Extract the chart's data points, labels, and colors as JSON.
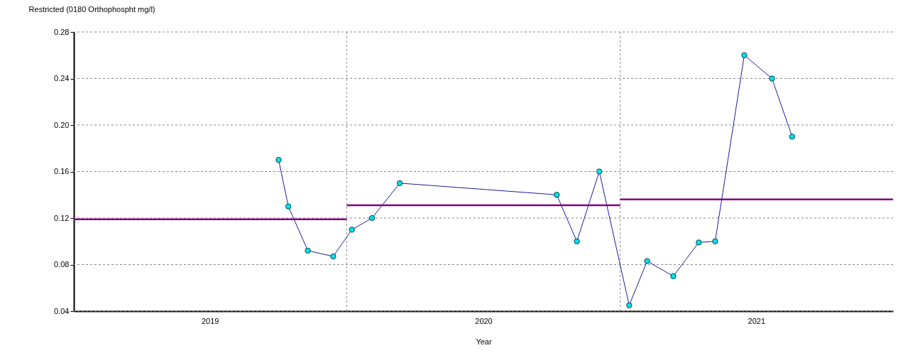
{
  "chart_data": {
    "type": "line",
    "title": "Restricted (0180 Orthophospht   mg/l)",
    "xlabel": "Year",
    "series": [
      {
        "type": "line",
        "color": "#1c1ca0",
        "marker": "circle",
        "x": [
          "2019-10-02",
          "2019-10-15",
          "2019-11-10",
          "2019-12-14",
          "2020-01-08",
          "2020-02-04",
          "2020-03-12",
          "2020-10-08",
          "2020-11-04",
          "2020-12-04",
          "2021-01-13",
          "2021-02-06",
          "2021-03-13",
          "2021-04-16",
          "2021-05-08",
          "2021-06-16",
          "2021-07-23",
          "2021-08-19"
        ],
        "values": [
          0.17,
          0.13,
          0.092,
          0.087,
          0.11,
          0.12,
          0.15,
          0.14,
          0.1,
          0.16,
          0.045,
          0.083,
          0.07,
          0.099,
          0.1,
          0.26,
          0.24,
          0.19
        ]
      },
      {
        "type": "line",
        "color": "#800080",
        "marker": "none",
        "x": [
          "2019-01-01",
          "2020-01-01"
        ],
        "values": [
          0.119,
          0.119
        ]
      },
      {
        "type": "line",
        "color": "#800080",
        "marker": "none",
        "x": [
          "2020-01-01",
          "2021-01-01"
        ],
        "values": [
          0.131,
          0.131
        ]
      },
      {
        "type": "line",
        "color": "#800080",
        "marker": "none",
        "x": [
          "2021-01-01",
          "2022-01-01"
        ],
        "values": [
          0.136,
          0.136
        ]
      }
    ],
    "xlim": [
      "2019-01-01",
      "2022-01-01"
    ],
    "xticks": [
      {
        "value": "2019-07-02",
        "label": "2019"
      },
      {
        "value": "2020-01-01",
        "label": null
      },
      {
        "value": "2020-07-02",
        "label": "2020"
      },
      {
        "value": "2021-01-01",
        "label": null
      },
      {
        "value": "2021-07-02",
        "label": "2021"
      }
    ],
    "ylim": [
      0.04,
      0.28
    ],
    "yticks": [
      0.04,
      0.08,
      0.12,
      0.16,
      {
        "value": 0.2,
        "label": "0.20"
      },
      0.24,
      0.28
    ],
    "grid": true
  }
}
